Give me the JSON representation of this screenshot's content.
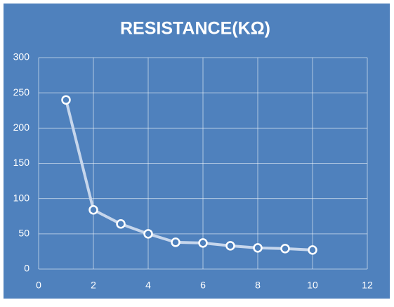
{
  "chart_data": {
    "type": "line",
    "title": "RESISTANCE(KΩ)",
    "x": [
      1,
      2,
      3,
      4,
      5,
      6,
      7,
      8,
      9,
      10
    ],
    "values": [
      240,
      84,
      64,
      50,
      38,
      37,
      33,
      30,
      29,
      27
    ],
    "color": "#c6d6ec",
    "marker_color": "#ffffff",
    "background": "#4f81bd",
    "xlim": [
      0,
      12
    ],
    "xticks": [
      0,
      2,
      4,
      6,
      8,
      10,
      12
    ],
    "ylim": [
      0,
      300
    ],
    "yticks": [
      0,
      50,
      100,
      150,
      200,
      250,
      300
    ],
    "grid": true
  }
}
